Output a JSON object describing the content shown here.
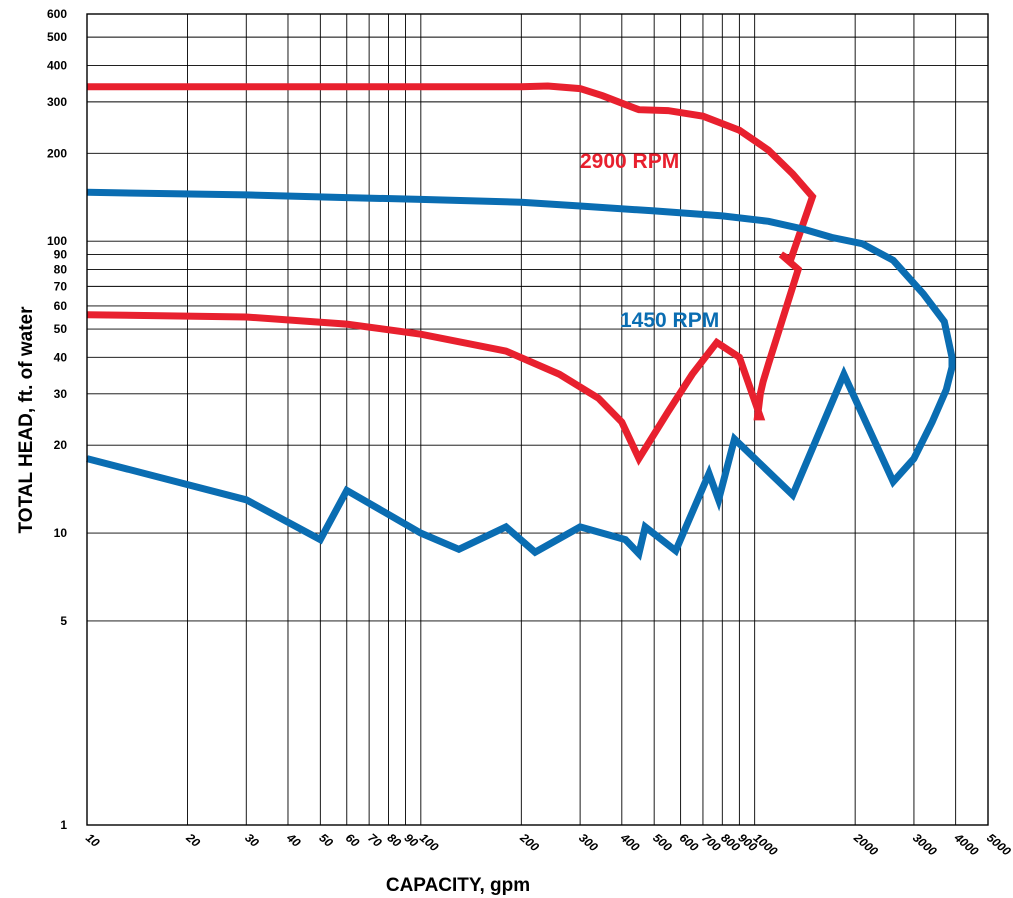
{
  "chart_data": {
    "type": "line",
    "xlabel": "CAPACITY, gpm",
    "ylabel": "TOTAL HEAD, ft. of water",
    "x_scale": "log",
    "y_scale": "log",
    "xlim": [
      10,
      5000
    ],
    "ylim": [
      1,
      600
    ],
    "grid": true,
    "x_ticks": [
      10,
      20,
      30,
      40,
      50,
      60,
      70,
      80,
      90,
      100,
      200,
      300,
      400,
      500,
      600,
      700,
      800,
      900,
      1000,
      2000,
      3000,
      4000,
      5000
    ],
    "y_ticks": [
      1,
      5,
      10,
      20,
      30,
      40,
      50,
      60,
      70,
      80,
      90,
      100,
      200,
      300,
      400,
      500,
      600
    ],
    "series": [
      {
        "name": "2900 RPM",
        "color": "#e8202e",
        "label_color": "#e8202e",
        "x": [
          10,
          100,
          200,
          240,
          300,
          350,
          450,
          550,
          700,
          900,
          1100,
          1300,
          1490,
          1280,
          1200,
          1350,
          1100,
          1060,
          1040,
          1020,
          1040,
          900,
          770,
          650,
          550,
          450,
          400,
          340,
          260,
          180,
          100,
          60,
          30,
          10
        ],
        "y": [
          338,
          338,
          338,
          340,
          333,
          315,
          282,
          280,
          268,
          240,
          205,
          170,
          142,
          86,
          90,
          80,
          38,
          33,
          30,
          25,
          25,
          40,
          45,
          35,
          26,
          18,
          24,
          29,
          35,
          42,
          48,
          52,
          55,
          56
        ]
      },
      {
        "name": "1450 RPM",
        "color": "#0a6db2",
        "label_color": "#0a6db2",
        "x": [
          10,
          30,
          60,
          100,
          200,
          300,
          500,
          800,
          1100,
          1400,
          1700,
          2100,
          2600,
          3200,
          3700,
          3900,
          3900,
          3750,
          3400,
          3000,
          2600,
          1850,
          1300,
          870,
          780,
          730,
          580,
          470,
          450,
          410,
          300,
          220,
          180,
          130,
          100,
          60,
          50,
          30,
          10
        ],
        "y": [
          147,
          144,
          141,
          139,
          136,
          132,
          127,
          122,
          117,
          110,
          103,
          98,
          86,
          66,
          53,
          40,
          37,
          31,
          24,
          18,
          15,
          35,
          13.5,
          21,
          13,
          16,
          8.7,
          10.5,
          8.5,
          9.5,
          10.5,
          8.6,
          10.5,
          8.8,
          10,
          14,
          9.5,
          13,
          18
        ]
      }
    ]
  }
}
